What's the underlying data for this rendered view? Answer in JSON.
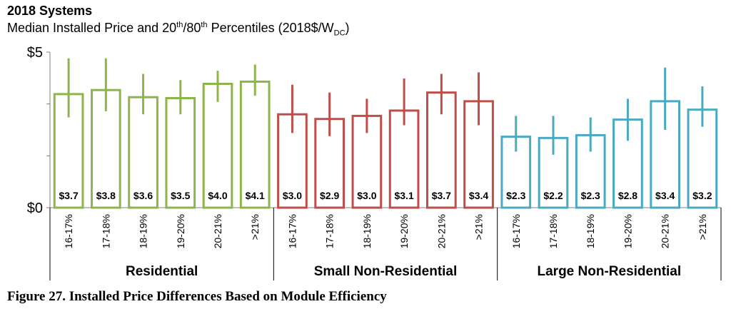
{
  "chart_data": {
    "type": "bar",
    "title": "2018 Systems",
    "subtitle_parts": {
      "a": "Median Installed  Price and 20",
      "a_sup": "th",
      "b": "/80",
      "b_sup": "th",
      "c": " Percentiles (2018$/W",
      "c_sub": "DC",
      "d": ")"
    },
    "caption": "Figure 27. Installed Price Differences Based on Module Efficiency",
    "y_tick_labels": [
      "$0",
      "$5"
    ],
    "ylim": [
      0,
      5
    ],
    "groups": [
      {
        "name": "Residential",
        "color": "#8db54a",
        "categories": [
          "16-17%",
          "17-18%",
          "18-19%",
          "19-20%",
          "20-21%",
          ">21%"
        ],
        "values": [
          3.65,
          3.78,
          3.55,
          3.52,
          3.98,
          4.05
        ],
        "labels": [
          "$3.7",
          "$3.8",
          "$3.6",
          "$3.5",
          "$4.0",
          "$4.1"
        ],
        "p20": [
          2.9,
          3.1,
          3.0,
          3.0,
          3.4,
          3.6
        ],
        "p80": [
          4.8,
          4.8,
          4.3,
          4.1,
          4.4,
          4.6
        ]
      },
      {
        "name": "Small Non-Residential",
        "color": "#bf4d4a",
        "categories": [
          "16-17%",
          "17-18%",
          "18-19%",
          "19-20%",
          "20-21%",
          ">21%"
        ],
        "values": [
          3.0,
          2.85,
          2.95,
          3.12,
          3.7,
          3.42
        ],
        "labels": [
          "$3.0",
          "$2.9",
          "$3.0",
          "$3.1",
          "$3.7",
          "$3.4"
        ],
        "p20": [
          2.4,
          2.3,
          2.4,
          2.65,
          3.0,
          2.65
        ],
        "p80": [
          3.95,
          3.7,
          3.5,
          4.15,
          4.3,
          4.35
        ]
      },
      {
        "name": "Large Non-Residential",
        "color": "#4aa9c3",
        "categories": [
          "16-17%",
          "17-18%",
          "18-19%",
          "19-20%",
          "20-21%",
          ">21%"
        ],
        "values": [
          2.28,
          2.24,
          2.33,
          2.83,
          3.42,
          3.15
        ],
        "labels": [
          "$2.3",
          "$2.2",
          "$2.3",
          "$2.8",
          "$3.4",
          "$3.2"
        ],
        "p20": [
          1.8,
          1.7,
          1.8,
          2.15,
          2.5,
          2.6
        ],
        "p80": [
          2.95,
          2.95,
          2.9,
          3.5,
          4.5,
          3.9
        ]
      }
    ]
  }
}
